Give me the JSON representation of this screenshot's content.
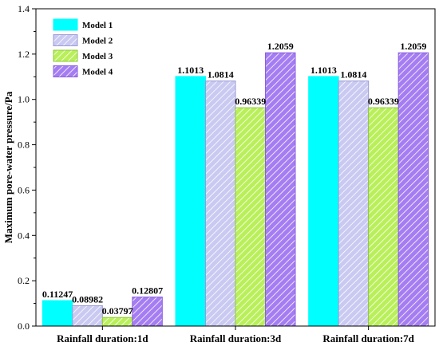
{
  "chart_data": {
    "type": "bar",
    "title": "",
    "xlabel": "",
    "ylabel": "Maximum pore-water pressure/Pa",
    "categories": [
      "Rainfall duration:1d",
      "Rainfall duration:3d",
      "Rainfall duration:7d"
    ],
    "ylim": [
      0,
      1.4
    ],
    "yticks": [
      "0.0",
      "0.2",
      "0.4",
      "0.6",
      "0.8",
      "1.0",
      "1.2",
      "1.4"
    ],
    "grid": false,
    "legend_position": "top-left",
    "series": [
      {
        "name": "Model 1",
        "values": [
          0.11247,
          1.1013,
          1.1013
        ],
        "labels": [
          "0.11247",
          "1.1013",
          "1.1013"
        ],
        "color": "#00FFFF",
        "pattern": "solid"
      },
      {
        "name": "Model 2",
        "values": [
          0.08982,
          1.0814,
          1.0814
        ],
        "labels": [
          "0.08982",
          "1.0814",
          "1.0814"
        ],
        "color": "#C9C9F2",
        "pattern": "hatch"
      },
      {
        "name": "Model 3",
        "values": [
          0.03797,
          0.96339,
          0.96339
        ],
        "labels": [
          "0.03797",
          "0.96339",
          "0.96339"
        ],
        "color": "#B9F05A",
        "pattern": "hatch"
      },
      {
        "name": "Model 4",
        "values": [
          0.12807,
          1.2059,
          1.2059
        ],
        "labels": [
          "0.12807",
          "1.2059",
          "1.2059"
        ],
        "color": "#A57DF2",
        "pattern": "hatch"
      }
    ]
  }
}
